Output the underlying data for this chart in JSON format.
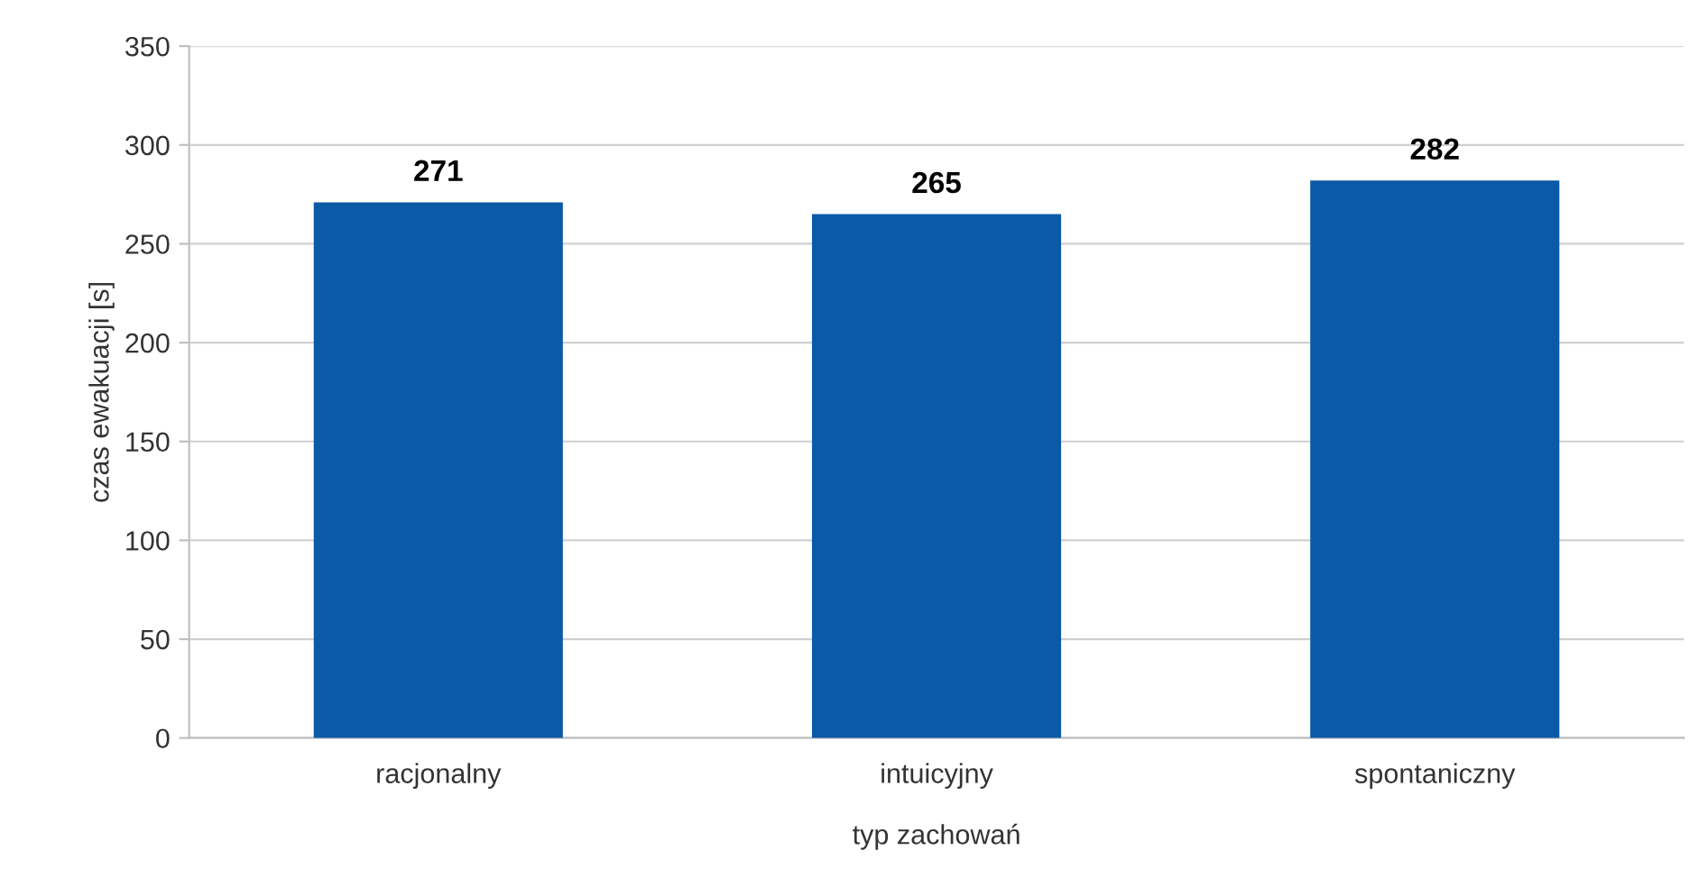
{
  "chart_data": {
    "type": "bar",
    "xlabel": "typ zachowań",
    "ylabel": "czas ewakuacji [s]",
    "categories": [
      "racjonalny",
      "intuicyjny",
      "spontaniczny"
    ],
    "values": [
      271,
      265,
      282
    ],
    "color": "#0b5aa8",
    "data_labels": true,
    "ylim": [
      0,
      350
    ],
    "yticks": [
      0,
      50,
      100,
      150,
      200,
      250,
      300,
      350
    ],
    "grid": "y",
    "legend": false
  }
}
